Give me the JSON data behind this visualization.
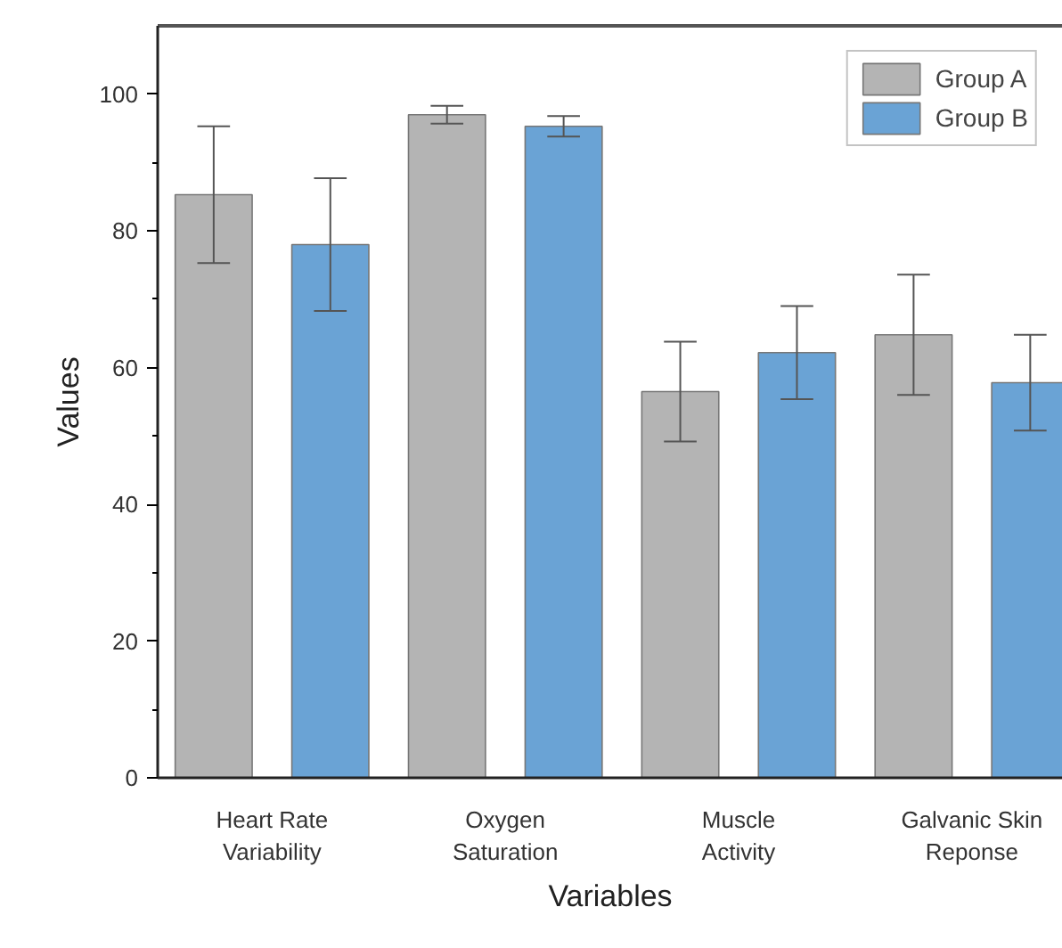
{
  "chart_data": {
    "type": "bar",
    "xlabel": "Variables",
    "ylabel": "Values",
    "categories": [
      "Heart Rate\nVariability",
      "Oxygen\nSaturation",
      "Muscle\nActivity",
      "Galvanic Skin\nReponse"
    ],
    "series": [
      {
        "name": "Group A",
        "color": "#b4b4b4",
        "values": [
          85.3,
          97,
          56.5,
          64.8
        ],
        "errors": [
          10,
          1.3,
          7.3,
          8.8
        ]
      },
      {
        "name": "Group B",
        "color": "#6aa3d5",
        "values": [
          78,
          95.3,
          62.2,
          57.8
        ],
        "errors": [
          9.7,
          1.5,
          6.8,
          7
        ]
      }
    ],
    "ylim": [
      0,
      110
    ],
    "yticks": [
      0,
      {
        "value": 10,
        "label": null
      },
      20,
      {
        "value": 30,
        "label": null
      },
      40,
      {
        "value": 50,
        "label": null
      },
      60,
      {
        "value": 70,
        "label": null
      },
      80,
      {
        "value": 90,
        "label": null
      },
      100
    ],
    "grid": false,
    "legend": "top right"
  }
}
